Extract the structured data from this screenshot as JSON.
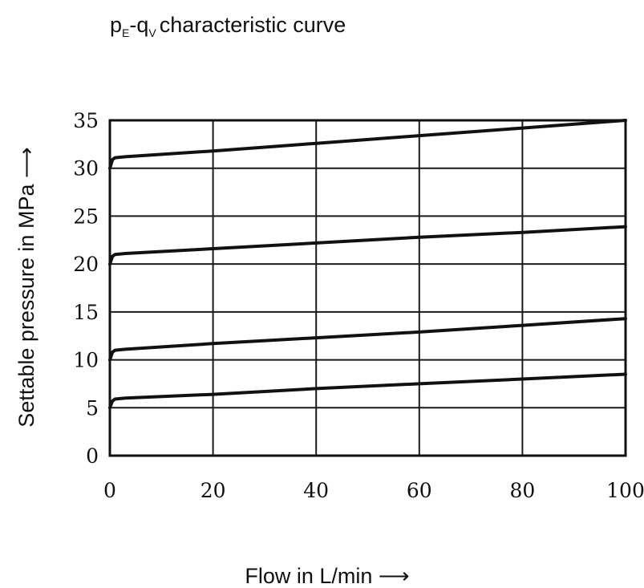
{
  "chart_data": {
    "type": "line",
    "title": {
      "p": "p",
      "p_sub": "E",
      "dash": "-q",
      "q_sub": "V",
      "rest": "characteristic curve"
    },
    "xlabel": "Flow in L/min ⟶",
    "ylabel": "Settable pressure in MPa ⟶",
    "xlim": [
      0,
      100
    ],
    "ylim": [
      0,
      35
    ],
    "x_ticks": [
      "0",
      "20",
      "40",
      "60",
      "80",
      "100"
    ],
    "y_ticks": [
      "0",
      "5",
      "10",
      "15",
      "20",
      "25",
      "30",
      "35"
    ],
    "grid": true,
    "series": [
      {
        "x": [
          0,
          0.5,
          1,
          3,
          20,
          40,
          60,
          80,
          100
        ],
        "values": [
          30.0,
          30.9,
          31.1,
          31.2,
          31.8,
          32.6,
          33.4,
          34.2,
          35.0
        ]
      },
      {
        "x": [
          0,
          0.5,
          1,
          3,
          20,
          40,
          60,
          80,
          100
        ],
        "values": [
          20.0,
          20.8,
          21.0,
          21.1,
          21.6,
          22.2,
          22.8,
          23.3,
          23.9
        ]
      },
      {
        "x": [
          0,
          0.5,
          1,
          3,
          20,
          40,
          60,
          80,
          100
        ],
        "values": [
          10.0,
          10.8,
          11.0,
          11.1,
          11.7,
          12.3,
          12.9,
          13.6,
          14.3
        ]
      },
      {
        "x": [
          0,
          0.5,
          1,
          3,
          20,
          40,
          60,
          80,
          100
        ],
        "values": [
          5.0,
          5.7,
          5.9,
          6.0,
          6.4,
          7.0,
          7.5,
          8.0,
          8.5
        ]
      }
    ]
  }
}
